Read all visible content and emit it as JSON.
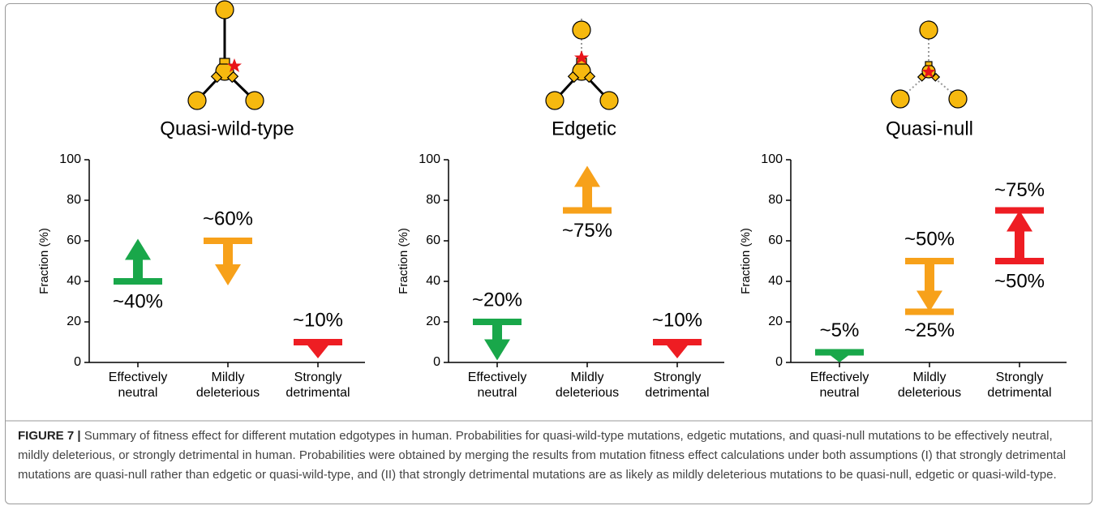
{
  "chart_data": [
    {
      "type": "arrow",
      "title": "Quasi-wild-type",
      "ylabel": "Fraction (%)",
      "categories": [
        [
          "Effectively",
          "neutral"
        ],
        [
          "Mildly",
          "deleterious"
        ],
        [
          "Strongly",
          "detrimental"
        ]
      ],
      "values": [
        40,
        60,
        10
      ],
      "value_labels": [
        "~40%",
        "~60%",
        "~10%"
      ],
      "arrow_ends": [
        61,
        38,
        2
      ],
      "end_labels": [
        null,
        null,
        null
      ],
      "colors": [
        "#19a74a",
        "#f7a11a",
        "#ee1d23"
      ],
      "ylim": [
        0,
        100
      ],
      "yticks": [
        0,
        20,
        40,
        60,
        80,
        100
      ]
    },
    {
      "type": "arrow",
      "title": "Edgetic",
      "ylabel": "Fraction (%)",
      "categories": [
        [
          "Effectively",
          "neutral"
        ],
        [
          "Mildly",
          "deleterious"
        ],
        [
          "Strongly",
          "detrimental"
        ]
      ],
      "values": [
        20,
        75,
        10
      ],
      "value_labels": [
        "~20%",
        "~75%",
        "~10%"
      ],
      "arrow_ends": [
        1,
        97,
        2
      ],
      "end_labels": [
        null,
        null,
        null
      ],
      "colors": [
        "#19a74a",
        "#f7a11a",
        "#ee1d23"
      ],
      "ylim": [
        0,
        100
      ],
      "yticks": [
        0,
        20,
        40,
        60,
        80,
        100
      ]
    },
    {
      "type": "arrow",
      "title": "Quasi-null",
      "ylabel": "Fraction (%)",
      "categories": [
        [
          "Effectively",
          "neutral"
        ],
        [
          "Mildly",
          "deleterious"
        ],
        [
          "Strongly",
          "detrimental"
        ]
      ],
      "values": [
        5,
        50,
        50
      ],
      "value_labels": [
        "~5%",
        "~50%",
        "~50%"
      ],
      "arrow_ends": [
        0,
        25,
        75
      ],
      "end_labels": [
        null,
        "~25%",
        "~75%"
      ],
      "colors": [
        "#19a74a",
        "#f7a11a",
        "#ee1d23"
      ],
      "ylim": [
        0,
        100
      ],
      "yticks": [
        0,
        20,
        40,
        60,
        80,
        100
      ]
    }
  ],
  "caption": {
    "label": "FIGURE 7 |",
    "text": "Summary of fitness effect for different mutation edgotypes in human. Probabilities for quasi-wild-type mutations, edgetic mutations, and quasi-null mutations to be effectively neutral, mildly deleterious, or strongly detrimental in human. Probabilities were obtained by merging the results from mutation fitness effect calculations under both assumptions (I) that strongly detrimental mutations are quasi-null rather than edgetic or quasi-wild-type, and (II) that strongly detrimental mutations are as likely as mildly deleterious mutations to be quasi-null, edgetic or quasi-wild-type."
  }
}
